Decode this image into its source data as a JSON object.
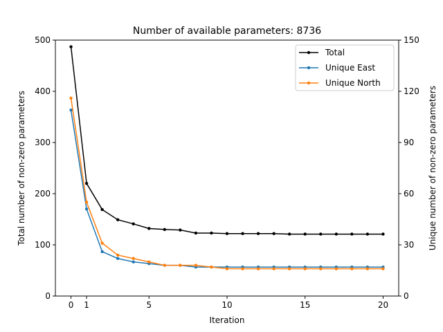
{
  "chart_data": {
    "type": "line",
    "title": "Number of available parameters: 8736",
    "xlabel": "Iteration",
    "ylabel_left": "Total number of non-zero parameters",
    "ylabel_right": "Unique number of non-zero parameters",
    "xlim": [
      -1,
      21
    ],
    "ylim_left": [
      0,
      500
    ],
    "ylim_right": [
      0,
      150
    ],
    "x_ticks": [
      0,
      1,
      5,
      10,
      15,
      20
    ],
    "y_ticks_left": [
      0,
      100,
      200,
      300,
      400,
      500
    ],
    "y_ticks_right": [
      0,
      30,
      60,
      90,
      120,
      150
    ],
    "grid": false,
    "legend_position": "top-right",
    "x": [
      0,
      1,
      2,
      3,
      4,
      5,
      6,
      7,
      8,
      9,
      10,
      11,
      12,
      13,
      14,
      15,
      16,
      17,
      18,
      19,
      20
    ],
    "series": [
      {
        "name": "Total",
        "axis": "left",
        "color": "#000000",
        "values": [
          487,
          220,
          169,
          149,
          141,
          132,
          130,
          129,
          123,
          123,
          122,
          122,
          122,
          122,
          121,
          121,
          121,
          121,
          121,
          121,
          121
        ]
      },
      {
        "name": "Unique East",
        "axis": "right",
        "color": "#1f77b4",
        "values": [
          109,
          51,
          26,
          22,
          20,
          19,
          18,
          18,
          17,
          17,
          17,
          17,
          17,
          17,
          17,
          17,
          17,
          17,
          17,
          17,
          17
        ]
      },
      {
        "name": "Unique North",
        "axis": "right",
        "color": "#ff7f0e",
        "values": [
          116,
          55,
          31,
          24,
          22,
          20,
          18,
          18,
          18,
          17,
          16,
          16,
          16,
          16,
          16,
          16,
          16,
          16,
          16,
          16,
          16
        ]
      }
    ]
  }
}
